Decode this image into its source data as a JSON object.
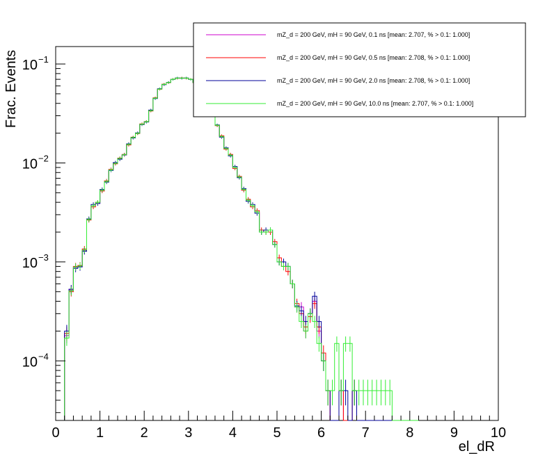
{
  "chart_data": {
    "type": "line",
    "xlabel": "el_dR",
    "ylabel": "Frac. Events",
    "xlim": [
      0,
      10
    ],
    "ylim": [
      2.5e-05,
      0.15
    ],
    "yscale": "log",
    "x_ticks": [
      "0",
      "1",
      "2",
      "3",
      "4",
      "5",
      "6",
      "7",
      "8",
      "9",
      "10"
    ],
    "y_ticks": [
      {
        "value": 0.1,
        "base": "10",
        "exp": "−1"
      },
      {
        "value": 0.01,
        "base": "10",
        "exp": "−2"
      },
      {
        "value": 0.001,
        "base": "10",
        "exp": "−3"
      },
      {
        "value": 0.0001,
        "base": "10",
        "exp": "−4"
      }
    ],
    "legend_position": "top-right",
    "bin_width": 0.1,
    "x_start": 0.2,
    "series": [
      {
        "name": "mZ_d = 200 GeV, mH = 90 GeV, 0.1 ns [mean: 2.707, % > 0.1: 1.000]",
        "color": "#cc00cc",
        "values": [
          0.00018,
          0.00052,
          0.00088,
          0.0009,
          0.0013,
          0.0027,
          0.0037,
          0.0039,
          0.0053,
          0.0065,
          0.0085,
          0.01,
          0.011,
          0.012,
          0.0155,
          0.018,
          0.02,
          0.0245,
          0.026,
          0.034,
          0.045,
          0.056,
          0.062,
          0.065,
          0.07,
          0.072,
          0.072,
          0.072,
          0.07,
          0.065,
          0.06,
          0.052,
          0.043,
          0.032,
          0.024,
          0.0185,
          0.014,
          0.012,
          0.009,
          0.0072,
          0.0054,
          0.0042,
          0.0037,
          0.0032,
          0.002,
          0.002,
          0.0021,
          0.0015,
          0.001,
          0.0009,
          0.0009,
          0.0006,
          0.00035,
          0.00035,
          0.0002,
          0.0003,
          0.0004,
          0.0002,
          0.0001,
          5e-05,
          0,
          0,
          5e-05,
          0,
          0,
          5e-05,
          0,
          0,
          0,
          0,
          0,
          0,
          0,
          0,
          0,
          0,
          0,
          0,
          0,
          0
        ]
      },
      {
        "name": "mZ_d = 200 GeV, mH = 90 GeV, 0.5 ns [mean: 2.708, % > 0.1: 1.000]",
        "color": "#ff0000",
        "values": [
          0.00019,
          0.0005,
          0.0009,
          0.00092,
          0.00135,
          0.00265,
          0.0036,
          0.004,
          0.0052,
          0.0066,
          0.0086,
          0.0098,
          0.0112,
          0.0122,
          0.0152,
          0.0182,
          0.0198,
          0.0248,
          0.0262,
          0.0335,
          0.0455,
          0.0555,
          0.0625,
          0.0648,
          0.0702,
          0.0718,
          0.0722,
          0.0718,
          0.0702,
          0.0648,
          0.0598,
          0.0522,
          0.0428,
          0.0322,
          0.0238,
          0.0188,
          0.0138,
          0.0122,
          0.0088,
          0.0073,
          0.0053,
          0.0043,
          0.0036,
          0.0033,
          0.0021,
          0.002,
          0.002,
          0.0016,
          0.0011,
          0.0009,
          0.0008,
          0.0006,
          0.00038,
          0.0003,
          0.00022,
          0.00028,
          0.00038,
          0.00022,
          0.00012,
          5e-05,
          0,
          0,
          5e-05,
          0,
          0,
          5e-05,
          0,
          0,
          0,
          0,
          0,
          0,
          0,
          0,
          0,
          0,
          0,
          0,
          0,
          0
        ]
      },
      {
        "name": "mZ_d = 200 GeV, mH = 90 GeV, 2.0 ns [mean: 2.708, % > 0.1: 1.000]",
        "color": "#000099",
        "values": [
          0.0002,
          0.00053,
          0.00086,
          0.00089,
          0.00128,
          0.00272,
          0.0038,
          0.0039,
          0.0054,
          0.0064,
          0.0084,
          0.0101,
          0.0109,
          0.0121,
          0.0156,
          0.0179,
          0.0201,
          0.0244,
          0.0259,
          0.0342,
          0.0448,
          0.0562,
          0.0618,
          0.0652,
          0.0698,
          0.0722,
          0.0718,
          0.0722,
          0.0698,
          0.0652,
          0.0602,
          0.0518,
          0.0432,
          0.0318,
          0.0242,
          0.0182,
          0.0142,
          0.0118,
          0.0092,
          0.0071,
          0.0055,
          0.0041,
          0.0038,
          0.0031,
          0.002,
          0.0021,
          0.0021,
          0.0015,
          0.001,
          0.001,
          0.0009,
          0.0006,
          0.00036,
          0.00032,
          0.00025,
          0.0003,
          0.00045,
          0.00025,
          0.0001,
          5e-05,
          0,
          0,
          5e-05,
          5e-05,
          0,
          5e-05,
          0,
          0,
          0,
          0,
          0,
          0,
          0,
          0,
          0,
          0,
          0,
          0,
          0,
          0
        ]
      },
      {
        "name": "mZ_d = 200 GeV, mH = 90 GeV, 10.0 ns [mean: 2.707, % > 0.1: 1.000]",
        "color": "#33ee33",
        "values": [
          0.00017,
          0.00051,
          0.00089,
          0.00091,
          0.00132,
          0.00268,
          0.0037,
          0.004,
          0.0053,
          0.0065,
          0.0085,
          0.0099,
          0.0111,
          0.0121,
          0.0154,
          0.0181,
          0.0199,
          0.0246,
          0.0261,
          0.0338,
          0.0452,
          0.0558,
          0.0622,
          0.065,
          0.07,
          0.072,
          0.072,
          0.072,
          0.07,
          0.065,
          0.06,
          0.052,
          0.043,
          0.032,
          0.024,
          0.0185,
          0.014,
          0.012,
          0.009,
          0.0072,
          0.0054,
          0.0042,
          0.0037,
          0.0032,
          0.002,
          0.002,
          0.0021,
          0.0015,
          0.001,
          0.0009,
          0.0009,
          0.0006,
          0.00035,
          0.00025,
          0.0002,
          0.0003,
          0.00025,
          0.00015,
          0.0001,
          5e-05,
          5e-05,
          0.00015,
          5e-05,
          0.00015,
          0.00015,
          5e-05,
          5e-05,
          5e-05,
          5e-05,
          5e-05,
          5e-05,
          5e-05,
          5e-05,
          5e-05,
          0,
          0,
          0,
          0,
          0,
          0
        ]
      }
    ]
  }
}
